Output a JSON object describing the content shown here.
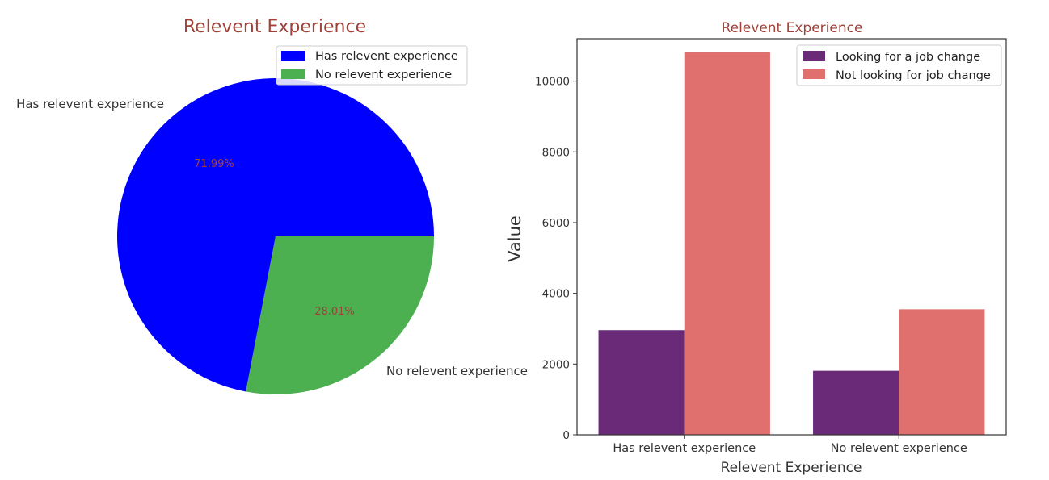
{
  "chart_data": [
    {
      "type": "pie",
      "title": "Relevent Experience",
      "labels": [
        "Has relevent experience",
        "No relevent experience"
      ],
      "values": [
        71.99,
        28.01
      ],
      "autopct_labels": [
        "71.99%",
        "28.01%"
      ],
      "colors": [
        "#0000ff",
        "#4caf50"
      ],
      "legend": {
        "placement": "top-right",
        "entries": [
          "Has relevent experience",
          "No relevent experience"
        ]
      },
      "title_color": "#a0413a",
      "pct_color": "#a0413a"
    },
    {
      "type": "bar",
      "title": "Relevent Experience",
      "xlabel": "Relevent Experience",
      "ylabel": "Value",
      "categories": [
        "Has relevent experience",
        "No relevent experience"
      ],
      "series": [
        {
          "name": "Looking for a job change",
          "values": [
            2960,
            1810
          ],
          "color": "#6a2a78"
        },
        {
          "name": "Not looking for job change",
          "values": [
            10830,
            3550
          ],
          "color": "#e0706e"
        }
      ],
      "ylim": [
        0,
        11200
      ],
      "yticks": [
        0,
        2000,
        4000,
        6000,
        8000,
        10000
      ],
      "grid": false,
      "legend": {
        "placement": "top-right"
      },
      "title_color": "#a0413a"
    }
  ]
}
